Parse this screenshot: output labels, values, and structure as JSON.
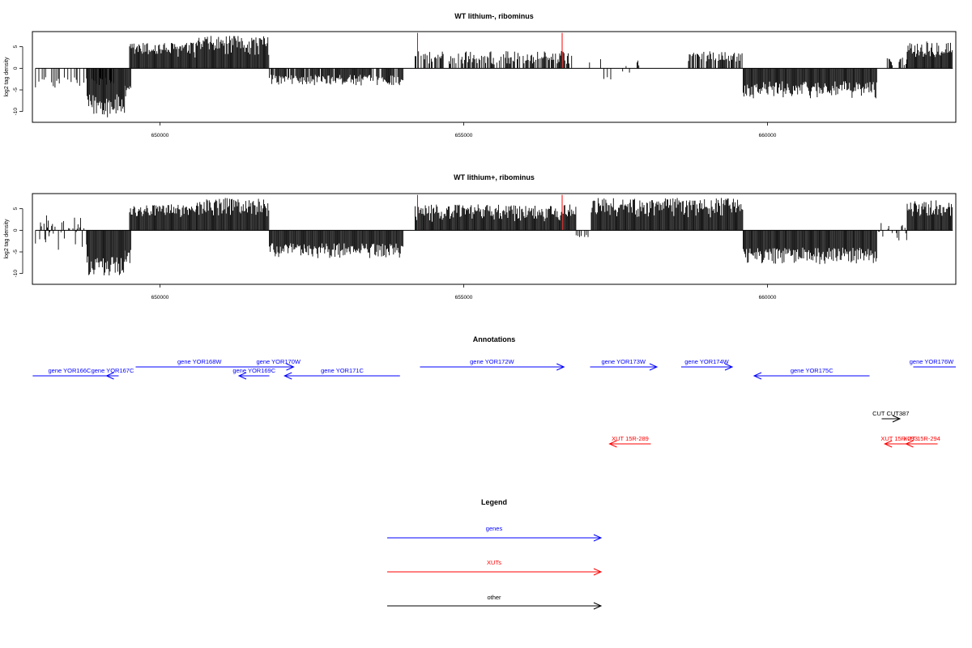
{
  "chart_data": [
    {
      "type": "bar",
      "title": "WT lithium-, ribominus",
      "ylabel": "log2 tag density",
      "xlabel": "",
      "x_ticks": [
        "650000",
        "655000",
        "660000"
      ],
      "x_tick_values": [
        650000,
        655000,
        660000
      ],
      "y_ticks": [
        "5",
        "0",
        "-5",
        "-10"
      ],
      "y_tick_values": [
        5,
        0,
        -5,
        -10
      ],
      "xlim": [
        647900,
        663100
      ],
      "ylim": [
        -12.5,
        8.5
      ],
      "bar_color": "#000000",
      "highlight_color": "#ff0000",
      "highlights": [
        {
          "x": 654240,
          "y": 8.2
        },
        {
          "x": 656620,
          "y": 8.2
        }
      ],
      "regions": [
        {
          "from": 647950,
          "to": 649250,
          "min": -4.5,
          "max": -2,
          "density": 0.4
        },
        {
          "from": 648800,
          "to": 649420,
          "min": -11.5,
          "max": -6,
          "density": 1
        },
        {
          "from": 649420,
          "to": 649530,
          "min": -8,
          "max": -4,
          "density": 1
        },
        {
          "from": 649500,
          "to": 650600,
          "min": 2.5,
          "max": 6,
          "density": 1
        },
        {
          "from": 650600,
          "to": 651800,
          "min": 3,
          "max": 7.5,
          "density": 1
        },
        {
          "from": 651800,
          "to": 654000,
          "min": -4,
          "max": -1.5,
          "density": 0.9
        },
        {
          "from": 654200,
          "to": 656800,
          "min": 0.8,
          "max": 4,
          "density": 0.6
        },
        {
          "from": 657000,
          "to": 658100,
          "min": -3,
          "max": 2.5,
          "density": 0.15
        },
        {
          "from": 658700,
          "to": 659600,
          "min": 1.5,
          "max": 4,
          "density": 0.7
        },
        {
          "from": 659600,
          "to": 661800,
          "min": -7,
          "max": -3,
          "density": 1
        },
        {
          "from": 661900,
          "to": 662300,
          "min": 0.5,
          "max": 2.5,
          "density": 0.3
        },
        {
          "from": 662300,
          "to": 663050,
          "min": 2.5,
          "max": 6.5,
          "density": 1
        }
      ]
    },
    {
      "type": "bar",
      "title": "WT lithium+, ribominus",
      "ylabel": "log2 tag density",
      "xlabel": "",
      "x_ticks": [
        "650000",
        "655000",
        "660000"
      ],
      "x_tick_values": [
        650000,
        655000,
        660000
      ],
      "y_ticks": [
        "5",
        "0",
        "-5",
        "-10"
      ],
      "y_tick_values": [
        5,
        0,
        -5,
        -10
      ],
      "xlim": [
        647900,
        663100
      ],
      "ylim": [
        -12.5,
        8.5
      ],
      "bar_color": "#000000",
      "highlight_color": "#ff0000",
      "highlights": [
        {
          "x": 654240,
          "y": 8.2
        },
        {
          "x": 656620,
          "y": 8.2
        }
      ],
      "regions": [
        {
          "from": 647950,
          "to": 648800,
          "min": -5,
          "max": 3.5,
          "density": 0.6
        },
        {
          "from": 648800,
          "to": 649420,
          "min": -11,
          "max": -6,
          "density": 1
        },
        {
          "from": 649420,
          "to": 649530,
          "min": -8,
          "max": -4,
          "density": 1
        },
        {
          "from": 649500,
          "to": 650600,
          "min": 3,
          "max": 6,
          "density": 1
        },
        {
          "from": 650600,
          "to": 651800,
          "min": 3,
          "max": 7.5,
          "density": 1
        },
        {
          "from": 651800,
          "to": 654000,
          "min": -6.5,
          "max": -3,
          "density": 1
        },
        {
          "from": 654200,
          "to": 656850,
          "min": 2,
          "max": 6,
          "density": 1
        },
        {
          "from": 656850,
          "to": 657100,
          "min": -2,
          "max": -1,
          "density": 0.4
        },
        {
          "from": 657100,
          "to": 659600,
          "min": 3,
          "max": 7.5,
          "density": 1
        },
        {
          "from": 659600,
          "to": 661800,
          "min": -8,
          "max": -4,
          "density": 1
        },
        {
          "from": 661800,
          "to": 662300,
          "min": -2.5,
          "max": 2,
          "density": 0.4
        },
        {
          "from": 662300,
          "to": 663050,
          "min": 3,
          "max": 7,
          "density": 1
        }
      ]
    }
  ],
  "annotations": {
    "title": "Annotations",
    "features": [
      {
        "label": "gene YOR166C",
        "from": 647905,
        "to": 649120,
        "dir": "",
        "row": 2,
        "color": "#0000ff"
      },
      {
        "label": "gene YOR167C",
        "from": 649120,
        "to": 649320,
        "dir": "left",
        "row": 2,
        "color": "#0000ff"
      },
      {
        "label": "gene YOR168W",
        "from": 649600,
        "to": 651700,
        "dir": "",
        "row": 1,
        "color": "#0000ff"
      },
      {
        "label": "gene YOR170W",
        "from": 651700,
        "to": 652200,
        "dir": "right",
        "row": 1,
        "color": "#0000ff"
      },
      {
        "label": "gene YOR169C",
        "from": 651300,
        "to": 651800,
        "dir": "left",
        "row": 2,
        "color": "#0000ff"
      },
      {
        "label": "gene YOR171C",
        "from": 652050,
        "to": 653950,
        "dir": "left",
        "row": 2,
        "color": "#0000ff"
      },
      {
        "label": "gene YOR172W",
        "from": 654280,
        "to": 656650,
        "dir": "right",
        "row": 1,
        "color": "#0000ff"
      },
      {
        "label": "gene YOR173W",
        "from": 657080,
        "to": 658180,
        "dir": "right",
        "row": 1,
        "color": "#0000ff"
      },
      {
        "label": "gene YOR174W",
        "from": 658580,
        "to": 659420,
        "dir": "right",
        "row": 1,
        "color": "#0000ff"
      },
      {
        "label": "gene YOR175C",
        "from": 659780,
        "to": 661680,
        "dir": "left",
        "row": 2,
        "color": "#0000ff"
      },
      {
        "label": "gene YOR176W",
        "from": 662400,
        "to": 663100,
        "dir": "",
        "row": 1,
        "color": "#0000ff"
      },
      {
        "label": "CUT CUT387",
        "from": 661880,
        "to": 662180,
        "dir": "right",
        "row": 3,
        "color": "#000000"
      },
      {
        "label": "XUT 15R-289",
        "from": 657400,
        "to": 658080,
        "dir": "left",
        "row": 4,
        "color": "#ff0000"
      },
      {
        "label": "XUT 15R-293",
        "from": 661930,
        "to": 662410,
        "dir": "left",
        "row": 4,
        "color": "#ff0000"
      },
      {
        "label": "XUT 15R-294",
        "from": 662280,
        "to": 662800,
        "dir": "left",
        "row": 4,
        "color": "#ff0000"
      }
    ]
  },
  "legend": {
    "title": "Legend",
    "items": [
      {
        "label": "genes",
        "color": "#0000ff"
      },
      {
        "label": "XUTs",
        "color": "#ff0000"
      },
      {
        "label": "other",
        "color": "#000000"
      }
    ]
  }
}
